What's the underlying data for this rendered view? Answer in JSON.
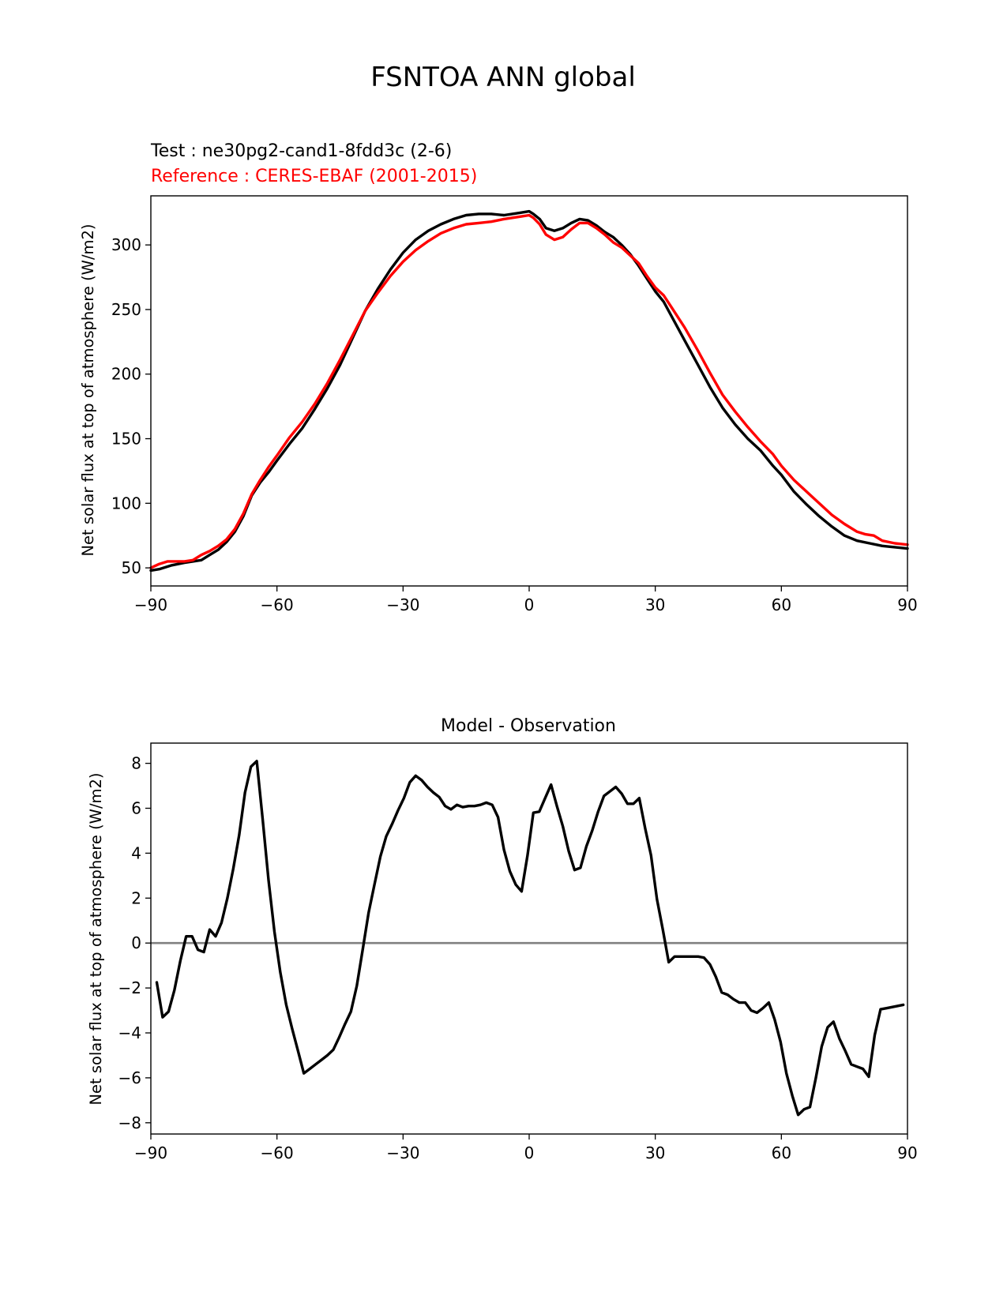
{
  "figure": {
    "title": "FSNTOA ANN global"
  },
  "chart_data": [
    {
      "type": "line",
      "title": "",
      "test_label": "Test : ne30pg2-cand1-8fdd3c (2-6)",
      "reference_label": "Reference : CERES-EBAF (2001-2015)",
      "xlabel": "",
      "ylabel": "Net solar flux at top of atmosphere (W/m2)",
      "xlim": [
        -90,
        90
      ],
      "ylim": [
        36,
        338
      ],
      "xticks": [
        -90,
        -60,
        -30,
        0,
        30,
        60,
        90
      ],
      "xtick_labels": [
        "−90",
        "−60",
        "−30",
        "0",
        "30",
        "60",
        "90"
      ],
      "yticks": [
        50,
        100,
        150,
        200,
        250,
        300
      ],
      "ytick_labels": [
        "50",
        "100",
        "150",
        "200",
        "250",
        "300"
      ],
      "grid": false,
      "series": [
        {
          "name": "Test : ne30pg2-cand1-8fdd3c (2-6)",
          "color": "#000000",
          "x": [
            -90,
            -88,
            -85,
            -82,
            -80,
            -78,
            -76,
            -74,
            -72,
            -70,
            -68,
            -66,
            -64,
            -62,
            -60,
            -57,
            -54,
            -51,
            -48,
            -45,
            -42,
            -39,
            -36,
            -33,
            -30,
            -27,
            -24,
            -21,
            -18,
            -15,
            -12,
            -9,
            -6,
            -4,
            -2,
            0,
            1,
            2.5,
            4,
            6,
            8,
            10,
            12,
            14,
            16,
            18,
            20,
            22,
            24,
            26,
            28,
            30,
            32,
            34,
            37,
            40,
            43,
            46,
            49,
            52,
            55,
            58,
            60,
            63,
            66,
            69,
            72,
            75,
            78,
            81,
            84,
            87,
            90
          ],
          "values": [
            48,
            49,
            52,
            54,
            55,
            56,
            60,
            64,
            70,
            78,
            90,
            106,
            116,
            124,
            133,
            146,
            158,
            173,
            189,
            207,
            228,
            249,
            266,
            281,
            294,
            304,
            311,
            316,
            320,
            323,
            324,
            324,
            323,
            324,
            325,
            326,
            324,
            320,
            313,
            311,
            313,
            317,
            320,
            319,
            315,
            310,
            306,
            300,
            293,
            284,
            274,
            264,
            256,
            244,
            226,
            208,
            190,
            174,
            161,
            150,
            141,
            129,
            122,
            109,
            99,
            90,
            82,
            75,
            71,
            69,
            67,
            66,
            65
          ]
        },
        {
          "name": "Reference : CERES-EBAF (2001-2015)",
          "color": "#ff0000",
          "x": [
            -90,
            -88,
            -86,
            -84,
            -82,
            -80,
            -78,
            -76,
            -74,
            -72,
            -70,
            -68,
            -66,
            -64,
            -62,
            -60,
            -57,
            -54,
            -51,
            -48,
            -45,
            -42,
            -39,
            -36,
            -33,
            -30,
            -27,
            -24,
            -21,
            -18,
            -15,
            -12,
            -9,
            -6,
            -4,
            -2,
            0,
            1,
            2.5,
            4,
            6,
            8,
            10,
            12,
            14,
            16,
            18,
            20,
            22,
            24,
            26,
            28,
            30,
            32,
            34,
            37,
            40,
            43,
            46,
            49,
            52,
            55,
            58,
            60,
            63,
            66,
            69,
            72,
            75,
            78,
            80,
            82,
            84,
            87,
            90
          ],
          "values": [
            50,
            53,
            55,
            55,
            55,
            56,
            60,
            63,
            67,
            72,
            80,
            92,
            107,
            118,
            128,
            137,
            151,
            163,
            177,
            193,
            211,
            230,
            249,
            263,
            276,
            287,
            296,
            303,
            309,
            313,
            316,
            317,
            318,
            320,
            321,
            322,
            323,
            321,
            316,
            308,
            304,
            306,
            312,
            317,
            317,
            313,
            308,
            302,
            298,
            292,
            286,
            276,
            267,
            261,
            251,
            236,
            219,
            201,
            184,
            171,
            159,
            148,
            138,
            129,
            118,
            109,
            100,
            91,
            84,
            78,
            76,
            75,
            71,
            69,
            68
          ]
        }
      ]
    },
    {
      "type": "line",
      "title": "Model - Observation",
      "xlabel": "",
      "ylabel": "Net solar flux at top of atmosphere (W/m2)",
      "xlim": [
        -90,
        90
      ],
      "ylim": [
        -8.5,
        8.9
      ],
      "xticks": [
        -90,
        -60,
        -30,
        0,
        30,
        60,
        90
      ],
      "xtick_labels": [
        "−90",
        "−60",
        "−30",
        "0",
        "30",
        "60",
        "90"
      ],
      "yticks": [
        -8,
        -6,
        -4,
        -2,
        0,
        2,
        4,
        6,
        8
      ],
      "ytick_labels": [
        "−8",
        "−6",
        "−4",
        "−2",
        "0",
        "2",
        "4",
        "6",
        "8"
      ],
      "grid": false,
      "zero_line": {
        "value": 0,
        "color": "#808080"
      },
      "series": [
        {
          "color": "#000000",
          "x": [
            -88.6,
            -87.2,
            -85.8,
            -84.4,
            -83.0,
            -81.6,
            -80.2,
            -78.8,
            -77.4,
            -76.0,
            -74.6,
            -73.2,
            -71.8,
            -70.4,
            -69.0,
            -67.6,
            -66.2,
            -64.8,
            -63.4,
            -62.0,
            -60.6,
            -59.2,
            -57.8,
            -56.4,
            -55.0,
            -53.6,
            -52.2,
            -50.8,
            -49.4,
            -48.0,
            -46.6,
            -45.2,
            -43.8,
            -42.4,
            -41.0,
            -39.6,
            -38.2,
            -36.8,
            -35.4,
            -34.0,
            -32.6,
            -31.2,
            -29.8,
            -28.4,
            -27.0,
            -25.6,
            -24.2,
            -22.8,
            -21.4,
            -20.0,
            -18.6,
            -17.2,
            -15.8,
            -14.4,
            -13.0,
            -11.6,
            -10.2,
            -8.8,
            -7.4,
            -6.0,
            -4.6,
            -3.2,
            -1.8,
            -0.4,
            1.0,
            2.4,
            3.8,
            5.2,
            6.6,
            8.0,
            9.4,
            10.8,
            12.2,
            13.6,
            15.0,
            16.4,
            17.8,
            19.2,
            20.6,
            22.0,
            23.4,
            24.8,
            26.2,
            27.6,
            29.0,
            30.4,
            31.8,
            33.2,
            34.6,
            36.0,
            37.4,
            38.8,
            40.2,
            41.6,
            43.0,
            44.4,
            45.8,
            47.2,
            48.6,
            50.0,
            51.4,
            52.8,
            54.2,
            55.6,
            57.0,
            58.4,
            59.8,
            61.2,
            62.6,
            64.0,
            65.4,
            66.8,
            68.2,
            69.6,
            71.0,
            72.4,
            73.8,
            75.2,
            76.6,
            78.0,
            79.4,
            80.8,
            82.2,
            83.6,
            85.0,
            89.0
          ],
          "values": [
            -1.75,
            -3.3,
            -3.05,
            -2.1,
            -0.8,
            0.3,
            0.3,
            -0.3,
            -0.4,
            0.6,
            0.3,
            0.9,
            2.0,
            3.3,
            4.8,
            6.7,
            7.85,
            8.1,
            5.5,
            2.8,
            0.5,
            -1.3,
            -2.75,
            -3.8,
            -4.8,
            -5.8,
            -5.6,
            -5.4,
            -5.2,
            -5.0,
            -4.75,
            -4.2,
            -3.6,
            -3.05,
            -1.9,
            -0.3,
            1.35,
            2.6,
            3.85,
            4.75,
            5.3,
            5.9,
            6.45,
            7.15,
            7.45,
            7.25,
            6.95,
            6.7,
            6.5,
            6.1,
            5.95,
            6.15,
            6.05,
            6.1,
            6.1,
            6.15,
            6.25,
            6.15,
            5.6,
            4.15,
            3.2,
            2.6,
            2.3,
            3.9,
            5.8,
            5.85,
            6.45,
            7.05,
            6.1,
            5.2,
            4.1,
            3.25,
            3.35,
            4.3,
            5.0,
            5.85,
            6.55,
            6.75,
            6.95,
            6.65,
            6.2,
            6.2,
            6.45,
            5.1,
            3.9,
            1.95,
            0.6,
            -0.85,
            -0.6,
            -0.6,
            -0.6,
            -0.6,
            -0.6,
            -0.65,
            -0.95,
            -1.5,
            -2.2,
            -2.3,
            -2.5,
            -2.65,
            -2.65,
            -3.0,
            -3.1,
            -2.9,
            -2.65,
            -3.4,
            -4.4,
            -5.8,
            -6.8,
            -7.65,
            -7.4,
            -7.3,
            -6.0,
            -4.6,
            -3.75,
            -3.5,
            -4.25,
            -4.8,
            -5.4,
            -5.5,
            -5.6,
            -5.95,
            -4.1,
            -2.95,
            -2.9,
            -2.75
          ]
        }
      ]
    }
  ]
}
